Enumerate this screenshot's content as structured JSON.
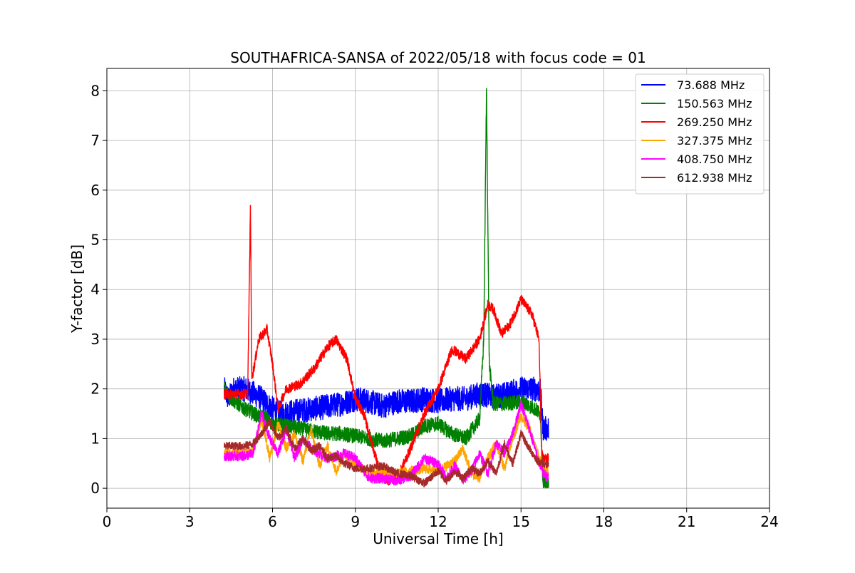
{
  "chart_data": {
    "type": "line",
    "title": "SOUTHAFRICA-SANSA of 2022/05/18 with focus code = 01",
    "xlabel": "Universal Time [h]",
    "ylabel": "Y-factor [dB]",
    "xlim": [
      0,
      24
    ],
    "ylim": [
      -0.4,
      8.45
    ],
    "xticks": [
      0,
      3,
      6,
      9,
      12,
      15,
      18,
      21,
      24
    ],
    "yticks": [
      0,
      1,
      2,
      3,
      4,
      5,
      6,
      7,
      8
    ],
    "grid": true,
    "legend_position": "top-right",
    "series": [
      {
        "name": "73.688 MHz",
        "color": "#0000ff",
        "noise": 0.25,
        "x": [
          4.25,
          4.4,
          4.6,
          5.0,
          5.5,
          6.0,
          6.3,
          6.8,
          7.5,
          8.0,
          8.5,
          9.0,
          9.5,
          10.0,
          10.5,
          11.0,
          11.5,
          12.0,
          12.5,
          13.0,
          13.5,
          14.0,
          14.5,
          15.0,
          15.5,
          15.7,
          15.8,
          16.0
        ],
        "y": [
          2.0,
          1.8,
          2.0,
          2.0,
          1.85,
          1.6,
          1.5,
          1.55,
          1.6,
          1.65,
          1.7,
          1.8,
          1.75,
          1.65,
          1.75,
          1.75,
          1.8,
          1.75,
          1.8,
          1.8,
          1.9,
          1.85,
          1.9,
          2.0,
          2.0,
          1.95,
          1.2,
          1.2
        ]
      },
      {
        "name": "150.563 MHz",
        "color": "#008000",
        "noise": 0.15,
        "x": [
          4.25,
          4.5,
          5.0,
          5.5,
          5.8,
          6.0,
          6.5,
          7.0,
          7.5,
          8.0,
          8.5,
          9.0,
          9.5,
          10.0,
          10.5,
          11.0,
          11.5,
          12.0,
          12.5,
          13.0,
          13.5,
          13.65,
          13.75,
          13.85,
          14.0,
          14.5,
          15.0,
          15.5,
          15.7,
          15.8,
          16.0
        ],
        "y": [
          2.0,
          1.8,
          1.6,
          1.45,
          1.4,
          1.3,
          1.25,
          1.2,
          1.15,
          1.1,
          1.1,
          1.05,
          1.0,
          0.95,
          1.0,
          1.05,
          1.25,
          1.3,
          1.1,
          1.0,
          1.4,
          3.0,
          8.05,
          2.5,
          1.7,
          1.7,
          1.75,
          1.6,
          1.5,
          0.1,
          0.05
        ]
      },
      {
        "name": "269.250 MHz",
        "color": "#ff0000",
        "noise": 0.1,
        "x": [
          4.25,
          4.8,
          5.1,
          5.2,
          5.25,
          5.35,
          5.5,
          5.8,
          6.0,
          6.2,
          6.5,
          7.0,
          7.5,
          8.0,
          8.3,
          8.7,
          9.0,
          9.3,
          9.6,
          9.9,
          10.2,
          10.6,
          11.0,
          11.5,
          12.0,
          12.5,
          13.0,
          13.5,
          13.8,
          14.0,
          14.3,
          14.6,
          15.0,
          15.4,
          15.65,
          15.75,
          15.8,
          16.0
        ],
        "y": [
          1.9,
          1.9,
          1.9,
          5.7,
          2.2,
          2.5,
          3.0,
          3.2,
          2.5,
          1.6,
          2.0,
          2.1,
          2.4,
          2.85,
          3.0,
          2.6,
          1.8,
          1.5,
          0.9,
          0.3,
          0.15,
          0.3,
          0.8,
          1.5,
          2.0,
          2.8,
          2.6,
          3.0,
          3.7,
          3.6,
          3.1,
          3.3,
          3.8,
          3.5,
          3.0,
          0.7,
          0.6,
          0.6
        ]
      },
      {
        "name": "327.375 MHz",
        "color": "#ffa500",
        "noise": 0.1,
        "x": [
          4.25,
          5.0,
          5.3,
          5.6,
          5.9,
          6.2,
          6.5,
          6.8,
          7.1,
          7.4,
          7.7,
          8.0,
          8.3,
          8.6,
          9.0,
          9.5,
          10.0,
          10.5,
          11.0,
          11.5,
          12.0,
          12.3,
          12.6,
          12.9,
          13.2,
          13.5,
          13.8,
          14.1,
          14.4,
          14.7,
          15.0,
          15.3,
          15.6,
          15.8,
          16.0
        ],
        "y": [
          0.7,
          0.7,
          0.75,
          1.4,
          0.6,
          1.3,
          0.8,
          1.1,
          0.55,
          1.2,
          0.45,
          0.85,
          0.35,
          0.7,
          0.5,
          0.3,
          0.35,
          0.3,
          0.35,
          0.4,
          0.35,
          0.45,
          0.55,
          0.8,
          0.3,
          0.2,
          0.6,
          0.9,
          0.4,
          1.0,
          1.45,
          1.2,
          0.7,
          0.4,
          0.3
        ]
      },
      {
        "name": "408.750 MHz",
        "color": "#ff00ff",
        "noise": 0.1,
        "x": [
          4.25,
          5.0,
          5.3,
          5.6,
          5.9,
          6.2,
          6.5,
          6.8,
          7.1,
          7.4,
          7.7,
          8.0,
          8.3,
          8.6,
          9.0,
          9.5,
          10.0,
          10.5,
          11.0,
          11.5,
          12.0,
          12.3,
          12.6,
          12.9,
          13.2,
          13.5,
          13.8,
          14.1,
          14.4,
          14.7,
          15.0,
          15.3,
          15.6,
          15.8,
          16.0
        ],
        "y": [
          0.65,
          0.65,
          0.7,
          1.5,
          1.0,
          0.7,
          1.2,
          0.6,
          1.0,
          0.8,
          0.7,
          0.6,
          0.65,
          0.7,
          0.6,
          0.2,
          0.2,
          0.15,
          0.25,
          0.6,
          0.5,
          0.2,
          0.45,
          0.15,
          0.35,
          0.7,
          0.3,
          0.9,
          0.7,
          1.1,
          1.7,
          1.2,
          0.6,
          0.3,
          0.2
        ]
      },
      {
        "name": "612.938 MHz",
        "color": "#a52a2a",
        "noise": 0.08,
        "x": [
          4.25,
          5.0,
          5.3,
          5.6,
          5.9,
          6.2,
          6.5,
          6.8,
          7.1,
          7.4,
          7.7,
          8.0,
          8.3,
          8.6,
          9.0,
          9.5,
          10.0,
          10.5,
          11.0,
          11.5,
          12.0,
          12.3,
          12.6,
          12.9,
          13.2,
          13.5,
          13.8,
          14.1,
          14.4,
          14.7,
          15.0,
          15.3,
          15.6,
          15.8,
          16.0
        ],
        "y": [
          0.85,
          0.85,
          0.9,
          1.1,
          1.35,
          1.0,
          1.2,
          0.8,
          1.0,
          0.75,
          0.85,
          0.6,
          0.65,
          0.5,
          0.4,
          0.4,
          0.45,
          0.3,
          0.25,
          0.1,
          0.35,
          0.15,
          0.35,
          0.2,
          0.4,
          0.3,
          0.55,
          0.3,
          0.9,
          0.5,
          1.1,
          0.8,
          0.55,
          0.5,
          0.45
        ]
      }
    ]
  }
}
